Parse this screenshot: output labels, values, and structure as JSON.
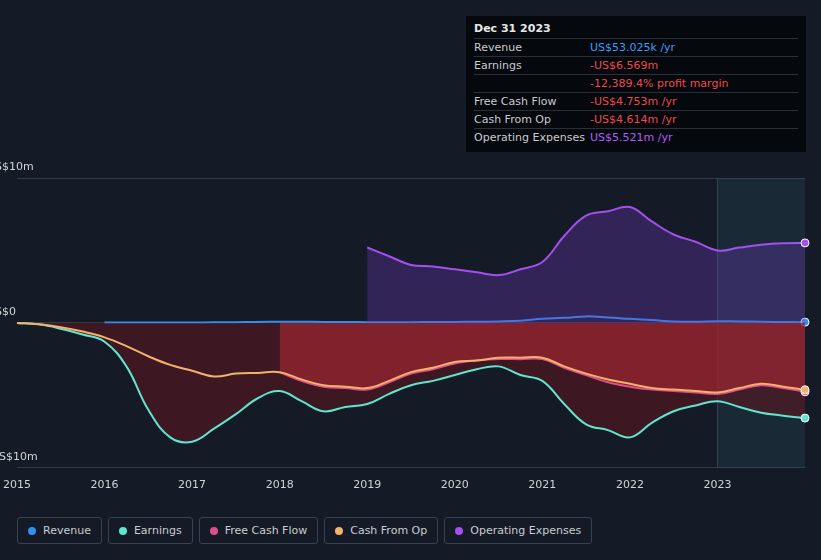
{
  "chart_data": {
    "type": "line",
    "categories": [
      "2015",
      null,
      null,
      null,
      "2016",
      null,
      null,
      null,
      "2017",
      null,
      null,
      null,
      "2018",
      null,
      null,
      null,
      "2019",
      null,
      null,
      null,
      "2020",
      null,
      null,
      null,
      "2021",
      null,
      null,
      null,
      "2022",
      null,
      null,
      null,
      "2023",
      null,
      null,
      null,
      null
    ],
    "series": [
      {
        "name": "Revenue",
        "color": "#2e8ff0",
        "values": [
          null,
          null,
          null,
          null,
          0.02,
          0.02,
          0.02,
          0.03,
          0.03,
          0.04,
          0.05,
          0.06,
          0.08,
          0.08,
          0.07,
          0.06,
          0.05,
          0.04,
          0.05,
          0.06,
          0.07,
          0.08,
          0.1,
          0.15,
          0.28,
          0.35,
          0.45,
          0.38,
          0.28,
          0.2,
          0.1,
          0.08,
          0.12,
          0.1,
          0.08,
          0.06,
          0.053
        ]
      },
      {
        "name": "Earnings",
        "color": "#5fe6cc",
        "values": [
          0,
          -0.1,
          -0.4,
          -0.8,
          -1.3,
          -3,
          -6,
          -7.9,
          -8.2,
          -7.3,
          -6.3,
          -5.2,
          -4.7,
          -5.4,
          -6.1,
          -5.8,
          -5.6,
          -4.9,
          -4.3,
          -4,
          -3.6,
          -3.2,
          -3,
          -3.6,
          -4,
          -5.6,
          -7,
          -7.4,
          -7.9,
          -6.9,
          -6.1,
          -5.7,
          -5.4,
          -5.8,
          -6.2,
          -6.4,
          -6.569
        ]
      },
      {
        "name": "Free Cash Flow",
        "color": "#e04e86",
        "values": [
          null,
          null,
          null,
          null,
          null,
          null,
          null,
          null,
          null,
          null,
          null,
          null,
          -3.4,
          -4.0,
          -4.4,
          -4.5,
          -4.6,
          -4.1,
          -3.5,
          -3.2,
          -2.8,
          -2.6,
          -2.5,
          -2.5,
          -2.5,
          -3.1,
          -3.6,
          -4.1,
          -4.4,
          -4.6,
          -4.7,
          -4.8,
          -4.9,
          -4.6,
          -4.3,
          -4.5,
          -4.753
        ]
      },
      {
        "name": "Cash From Op",
        "color": "#f2b26b",
        "values": [
          0,
          -0.1,
          -0.3,
          -0.6,
          -1.0,
          -1.6,
          -2.3,
          -2.9,
          -3.3,
          -3.7,
          -3.5,
          -3.45,
          -3.4,
          -3.9,
          -4.3,
          -4.4,
          -4.5,
          -4.0,
          -3.4,
          -3.1,
          -2.7,
          -2.6,
          -2.4,
          -2.4,
          -2.4,
          -3.0,
          -3.5,
          -3.9,
          -4.2,
          -4.5,
          -4.6,
          -4.7,
          -4.8,
          -4.5,
          -4.2,
          -4.4,
          -4.614
        ]
      },
      {
        "name": "Operating Expenses",
        "color": "#a44ff0",
        "values": [
          null,
          null,
          null,
          null,
          null,
          null,
          null,
          null,
          null,
          null,
          null,
          null,
          null,
          null,
          null,
          null,
          5.2,
          4.6,
          4.0,
          3.9,
          3.7,
          3.5,
          3.3,
          3.7,
          4.2,
          6.0,
          7.4,
          7.7,
          8.0,
          7.0,
          6.1,
          5.6,
          5.0,
          5.2,
          5.4,
          5.5,
          5.521
        ]
      }
    ],
    "ylim": [
      -10,
      10
    ],
    "yticks": [
      {
        "value": -10,
        "label": "-US$10m"
      },
      {
        "value": 0,
        "label": "US$0"
      },
      {
        "value": 10,
        "label": "US$10m"
      }
    ],
    "grid": true,
    "legend": "bottom",
    "summary": {
      "title": "Dec 31 2023",
      "rows": [
        {
          "label": "Revenue",
          "value": "US$53.025k /yr",
          "color": "#3d9df5"
        },
        {
          "label": "Earnings",
          "value": "-US$6.569m",
          "color": "#f04848"
        },
        {
          "value": "-12,389.4% profit margin",
          "color": "#f04848"
        },
        {
          "label": "Free Cash Flow",
          "value": "-US$4.753m /yr",
          "color": "#f04848"
        },
        {
          "label": "Cash From Op",
          "value": "-US$4.614m /yr",
          "color": "#f04848"
        },
        {
          "label": "Operating Expenses",
          "value": "US$5.521m /yr",
          "color": "#b35cf5"
        }
      ]
    }
  }
}
